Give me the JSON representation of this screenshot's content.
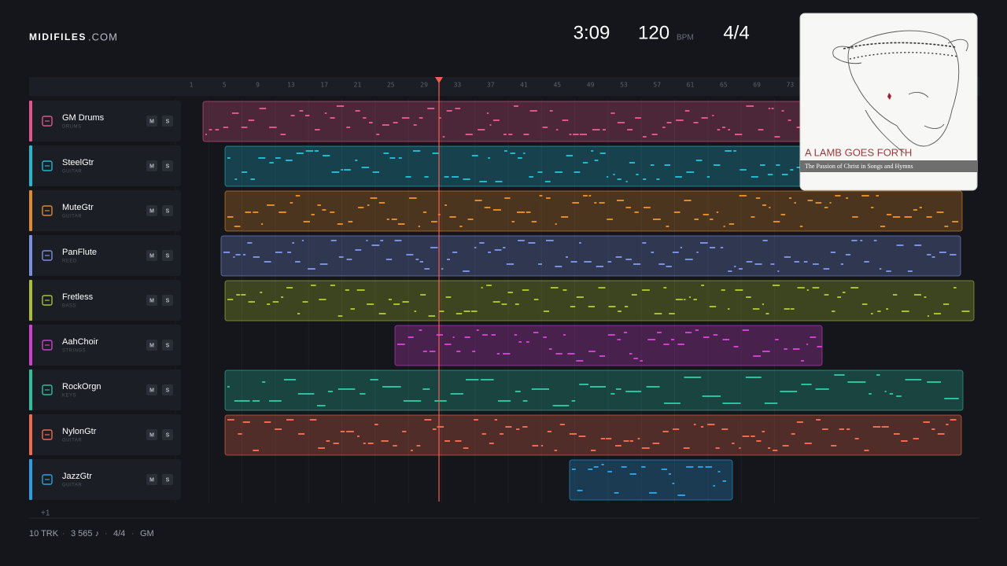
{
  "header": {
    "logo": "MIDIFILES",
    "logo_suffix": ".COM",
    "time": "3:09",
    "tempo": "120",
    "tempo_unit": "BPM",
    "meter": "4/4"
  },
  "ruler": [
    1,
    5,
    9,
    13,
    17,
    21,
    25,
    29,
    33,
    37,
    41,
    45,
    49,
    53,
    57,
    61,
    65,
    69,
    73
  ],
  "tracks": [
    {
      "name": "GM Drums",
      "category": "DRUMS",
      "mute": "M",
      "solo": "S"
    },
    {
      "name": "SteelGtr",
      "category": "GUITAR",
      "mute": "M",
      "solo": "S"
    },
    {
      "name": "MuteGtr",
      "category": "GUITAR",
      "mute": "M",
      "solo": "S"
    },
    {
      "name": "PanFlute",
      "category": "REED",
      "mute": "M",
      "solo": "S"
    },
    {
      "name": "Fretless",
      "category": "BASS",
      "mute": "M",
      "solo": "S"
    },
    {
      "name": "AahChoir",
      "category": "STRINGS",
      "mute": "M",
      "solo": "S"
    },
    {
      "name": "RockOrgn",
      "category": "KEYS",
      "mute": "M",
      "solo": "S"
    },
    {
      "name": "NylonGtr",
      "category": "GUITAR",
      "mute": "M",
      "solo": "S"
    },
    {
      "name": "JazzGtr",
      "category": "GUITAR",
      "mute": "M",
      "solo": "S"
    }
  ],
  "more_tracks": "+1",
  "footer": {
    "tracks": "10 TRK",
    "notes": "3 565 ♪",
    "meter": "4/4",
    "bank": "GM"
  },
  "cover": {
    "title": "A LAMB GOES FORTH",
    "subtitle": "The Passion of Christ in Songs and Hymns"
  }
}
